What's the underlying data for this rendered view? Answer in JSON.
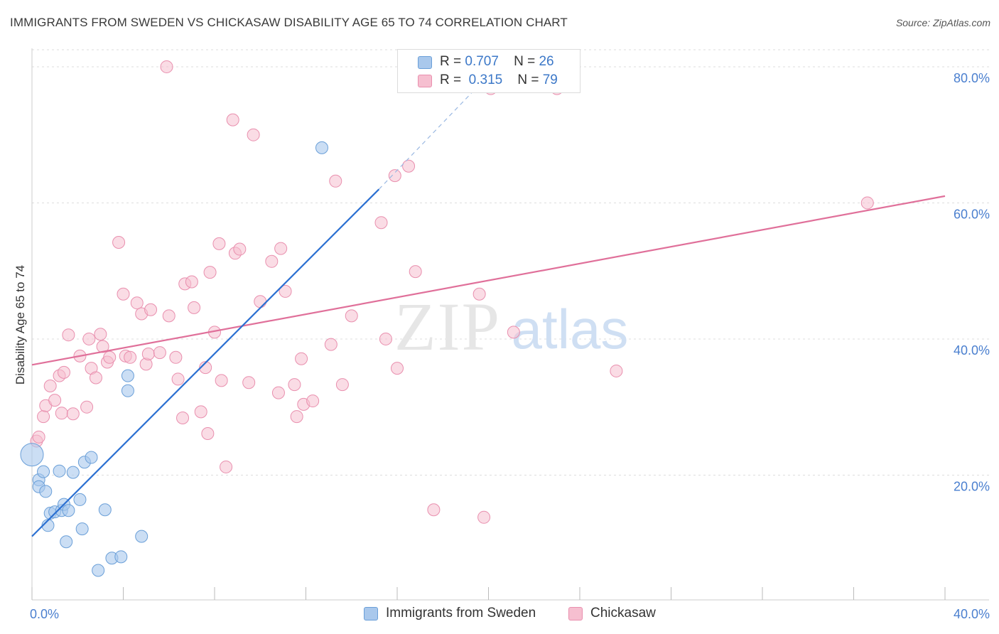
{
  "title": "IMMIGRANTS FROM SWEDEN VS CHICKASAW DISABILITY AGE 65 TO 74 CORRELATION CHART",
  "source": "Source: ZipAtlas.com",
  "watermark": {
    "zip": "ZIP",
    "atlas": "atlas"
  },
  "legend_top": {
    "rows": [
      {
        "r_label": "R =",
        "r_value": "0.707",
        "n_label": "N =",
        "n_value": "26"
      },
      {
        "r_label": "R =",
        "r_value": "0.315",
        "n_label": "N =",
        "n_value": "79"
      }
    ]
  },
  "legend_bottom": {
    "series1": "Immigrants from Sweden",
    "series2": "Chickasaw"
  },
  "colors": {
    "blue_fill": "#a9c8ec",
    "blue_stroke": "#6a9fd8",
    "blue_line": "#2a6fd1",
    "pink_fill": "#f6bfd0",
    "pink_stroke": "#e98fae",
    "pink_line": "#e0709a",
    "grid": "#dddddd",
    "tick_label": "#4a7fcf"
  },
  "chart_data": {
    "type": "scatter",
    "title": "IMMIGRANTS FROM SWEDEN VS CHICKASAW DISABILITY AGE 65 TO 74 CORRELATION CHART",
    "xlabel": "",
    "ylabel": "Disability Age 65 to 74",
    "xlim": [
      0,
      40
    ],
    "ylim": [
      2.5,
      82.5
    ],
    "x_ticks": [
      "0.0%",
      "40.0%"
    ],
    "y_ticks": [
      "20.0%",
      "40.0%",
      "60.0%",
      "80.0%"
    ],
    "y_tick_values": [
      20,
      40,
      60,
      80
    ],
    "grid": "horizontal dashed",
    "series": [
      {
        "name": "Immigrants from Sweden",
        "color": "#a9c8ec",
        "points": [
          [
            0.0,
            23.0
          ],
          [
            0.3,
            19.3
          ],
          [
            0.3,
            18.3
          ],
          [
            0.5,
            20.5
          ],
          [
            0.6,
            17.6
          ],
          [
            0.7,
            12.6
          ],
          [
            0.8,
            14.4
          ],
          [
            1.0,
            14.6
          ],
          [
            1.2,
            20.6
          ],
          [
            1.3,
            14.8
          ],
          [
            1.4,
            15.7
          ],
          [
            1.5,
            10.2
          ],
          [
            1.6,
            14.8
          ],
          [
            1.8,
            20.4
          ],
          [
            2.1,
            16.4
          ],
          [
            2.2,
            12.1
          ],
          [
            2.3,
            21.9
          ],
          [
            2.6,
            22.6
          ],
          [
            2.9,
            6.0
          ],
          [
            3.2,
            14.9
          ],
          [
            3.5,
            7.8
          ],
          [
            3.9,
            8.0
          ],
          [
            4.2,
            32.4
          ],
          [
            4.2,
            34.6
          ],
          [
            4.8,
            11.0
          ],
          [
            12.7,
            68.1
          ]
        ],
        "trend": {
          "x": [
            0.0,
            15.2
          ],
          "y": [
            11.0,
            62.0
          ],
          "dashed_to": {
            "x": 19.5,
            "y": 77.0
          }
        }
      },
      {
        "name": "Chickasaw",
        "color": "#f6bfd0",
        "points": [
          [
            0.2,
            25.0
          ],
          [
            0.3,
            25.6
          ],
          [
            0.5,
            28.6
          ],
          [
            0.6,
            30.2
          ],
          [
            0.8,
            33.1
          ],
          [
            1.0,
            31.0
          ],
          [
            1.2,
            34.6
          ],
          [
            1.3,
            29.1
          ],
          [
            1.4,
            35.1
          ],
          [
            1.6,
            40.6
          ],
          [
            1.8,
            29.0
          ],
          [
            2.1,
            37.5
          ],
          [
            2.4,
            30.0
          ],
          [
            2.5,
            40.0
          ],
          [
            2.6,
            35.7
          ],
          [
            2.8,
            34.3
          ],
          [
            3.0,
            40.7
          ],
          [
            3.1,
            38.9
          ],
          [
            3.3,
            36.6
          ],
          [
            3.4,
            37.3
          ],
          [
            3.8,
            54.2
          ],
          [
            4.0,
            46.6
          ],
          [
            4.1,
            37.5
          ],
          [
            4.3,
            37.3
          ],
          [
            4.6,
            45.3
          ],
          [
            4.8,
            43.7
          ],
          [
            5.0,
            36.3
          ],
          [
            5.1,
            37.8
          ],
          [
            5.2,
            44.3
          ],
          [
            5.6,
            38.0
          ],
          [
            5.9,
            80.0
          ],
          [
            6.0,
            43.4
          ],
          [
            6.3,
            37.3
          ],
          [
            6.4,
            34.1
          ],
          [
            6.6,
            28.4
          ],
          [
            6.7,
            48.1
          ],
          [
            7.0,
            48.4
          ],
          [
            7.1,
            44.6
          ],
          [
            7.4,
            29.3
          ],
          [
            7.6,
            35.8
          ],
          [
            7.7,
            26.1
          ],
          [
            7.8,
            49.8
          ],
          [
            8.0,
            41.0
          ],
          [
            8.2,
            54.0
          ],
          [
            8.3,
            33.9
          ],
          [
            8.5,
            21.2
          ],
          [
            8.8,
            72.2
          ],
          [
            8.9,
            52.6
          ],
          [
            9.1,
            53.2
          ],
          [
            9.5,
            33.6
          ],
          [
            9.7,
            70.0
          ],
          [
            10.0,
            45.5
          ],
          [
            10.5,
            51.4
          ],
          [
            10.8,
            32.1
          ],
          [
            10.9,
            53.3
          ],
          [
            11.1,
            47.0
          ],
          [
            11.5,
            33.3
          ],
          [
            11.6,
            28.6
          ],
          [
            11.8,
            37.1
          ],
          [
            11.9,
            30.4
          ],
          [
            12.3,
            30.9
          ],
          [
            13.1,
            39.2
          ],
          [
            13.3,
            63.2
          ],
          [
            13.6,
            33.3
          ],
          [
            14.0,
            43.4
          ],
          [
            15.3,
            57.1
          ],
          [
            15.5,
            40.0
          ],
          [
            15.9,
            64.0
          ],
          [
            16.0,
            35.7
          ],
          [
            16.5,
            65.4
          ],
          [
            16.8,
            49.9
          ],
          [
            17.6,
            14.9
          ],
          [
            19.6,
            46.6
          ],
          [
            19.8,
            13.8
          ],
          [
            20.1,
            76.8
          ],
          [
            21.1,
            41.0
          ],
          [
            23.0,
            76.8
          ],
          [
            25.6,
            35.3
          ],
          [
            36.6,
            60.0
          ]
        ],
        "trend": {
          "x": [
            0.0,
            40.0
          ],
          "y": [
            36.2,
            61.0
          ]
        }
      }
    ]
  }
}
